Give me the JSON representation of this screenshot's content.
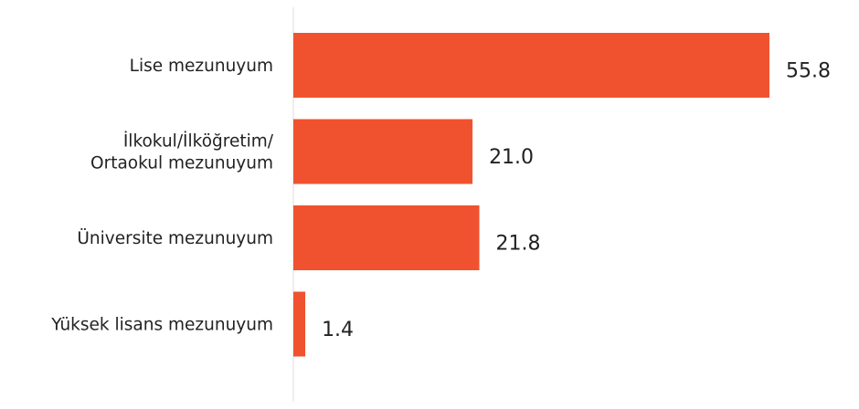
{
  "chart_data": {
    "type": "bar",
    "orientation": "horizontal",
    "categories": [
      [
        "Lise mezunuyum"
      ],
      [
        "İlkokul/İlköğretim/",
        "Ortaokul mezunuyum"
      ],
      [
        "Üniversite mezunuyum"
      ],
      [
        "Yüksek lisans mezunuyum"
      ]
    ],
    "values": [
      55.8,
      21.0,
      21.8,
      1.4
    ],
    "value_labels": [
      "55.8",
      "21.0",
      "21.8",
      "1.4"
    ],
    "xlim": [
      0,
      55.8
    ],
    "grid": false,
    "legend": "none",
    "bar_color": "#f0522f",
    "axis_color": "#e9e9e9",
    "text_color": "#222222",
    "title": ""
  }
}
